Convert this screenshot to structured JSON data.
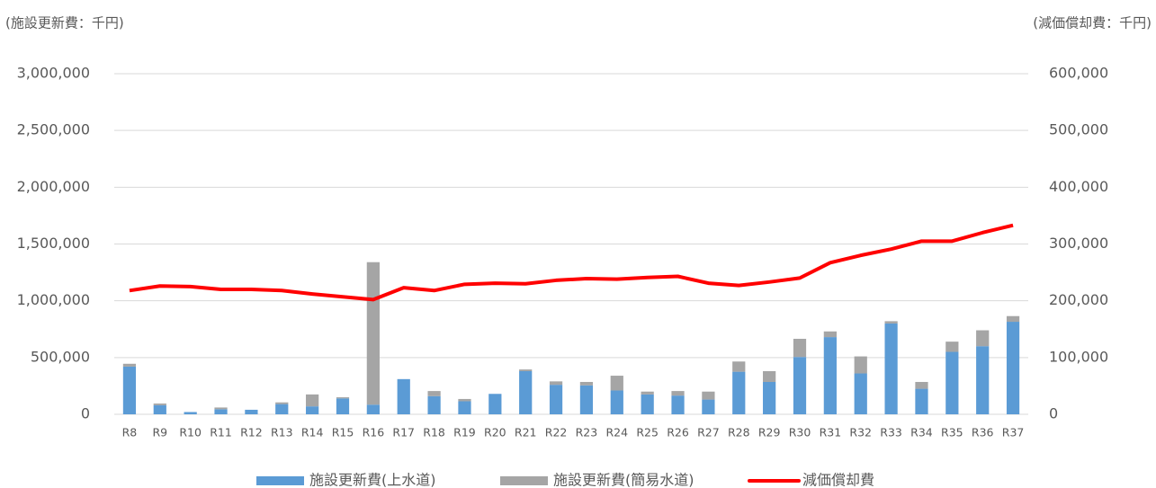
{
  "chart_data": {
    "type": "bar",
    "stacked": true,
    "y_label": "(施設更新費：千円)",
    "y2_label": "(減価償却費：千円)",
    "categories": [
      "R8",
      "R9",
      "R10",
      "R11",
      "R12",
      "R13",
      "R14",
      "R15",
      "R16",
      "R17",
      "R18",
      "R19",
      "R20",
      "R21",
      "R22",
      "R23",
      "R24",
      "R25",
      "R26",
      "R27",
      "R28",
      "R29",
      "R30",
      "R31",
      "R32",
      "R33",
      "R34",
      "R35",
      "R36",
      "R37"
    ],
    "series": [
      {
        "name": "施設更新費(上水道)",
        "type": "bar",
        "color": "#5b9bd5",
        "values": [
          420000,
          80000,
          20000,
          45000,
          40000,
          90000,
          70000,
          140000,
          85000,
          310000,
          160000,
          115000,
          180000,
          380000,
          260000,
          255000,
          210000,
          175000,
          165000,
          130000,
          375000,
          285000,
          505000,
          680000,
          360000,
          800000,
          225000,
          550000,
          600000,
          815000
        ]
      },
      {
        "name": "施設更新費(簡易水道)",
        "type": "bar",
        "color": "#a5a5a5",
        "values": [
          25000,
          15000,
          0,
          15000,
          0,
          15000,
          105000,
          10000,
          1255000,
          0,
          45000,
          20000,
          0,
          15000,
          30000,
          30000,
          130000,
          25000,
          40000,
          70000,
          90000,
          95000,
          160000,
          50000,
          150000,
          20000,
          60000,
          90000,
          140000,
          50000
        ]
      },
      {
        "name": "減価償却費",
        "type": "line",
        "axis": "y2",
        "color": "#ff0000",
        "values": [
          218000,
          226000,
          225000,
          220000,
          220000,
          218000,
          212000,
          207000,
          202000,
          223000,
          218000,
          229000,
          231000,
          230000,
          236000,
          239000,
          238000,
          241000,
          243000,
          231000,
          227000,
          233000,
          240000,
          267000,
          280000,
          291000,
          305000,
          305000,
          320000,
          333000
        ]
      }
    ],
    "ylim": [
      0,
      3000000
    ],
    "yticks": [
      0,
      {
        "value": 500000,
        "label": "500,000"
      },
      {
        "value": 1000000,
        "label": "1,000,000"
      },
      {
        "value": 1500000,
        "label": "1,500,000"
      },
      {
        "value": 2000000,
        "label": "2,000,000"
      },
      {
        "value": 2500000,
        "label": "2,500,000"
      },
      {
        "value": 3000000,
        "label": "3,000,000"
      }
    ],
    "y2lim": [
      0,
      600000
    ],
    "y2ticks": [
      0,
      {
        "value": 100000,
        "label": "100,000"
      },
      {
        "value": 200000,
        "label": "200,000"
      },
      {
        "value": 300000,
        "label": "300,000"
      },
      {
        "value": 400000,
        "label": "400,000"
      },
      {
        "value": 500000,
        "label": "500,000"
      },
      {
        "value": 600000,
        "label": "600,000"
      }
    ],
    "grid": true,
    "legend": "bottom"
  }
}
